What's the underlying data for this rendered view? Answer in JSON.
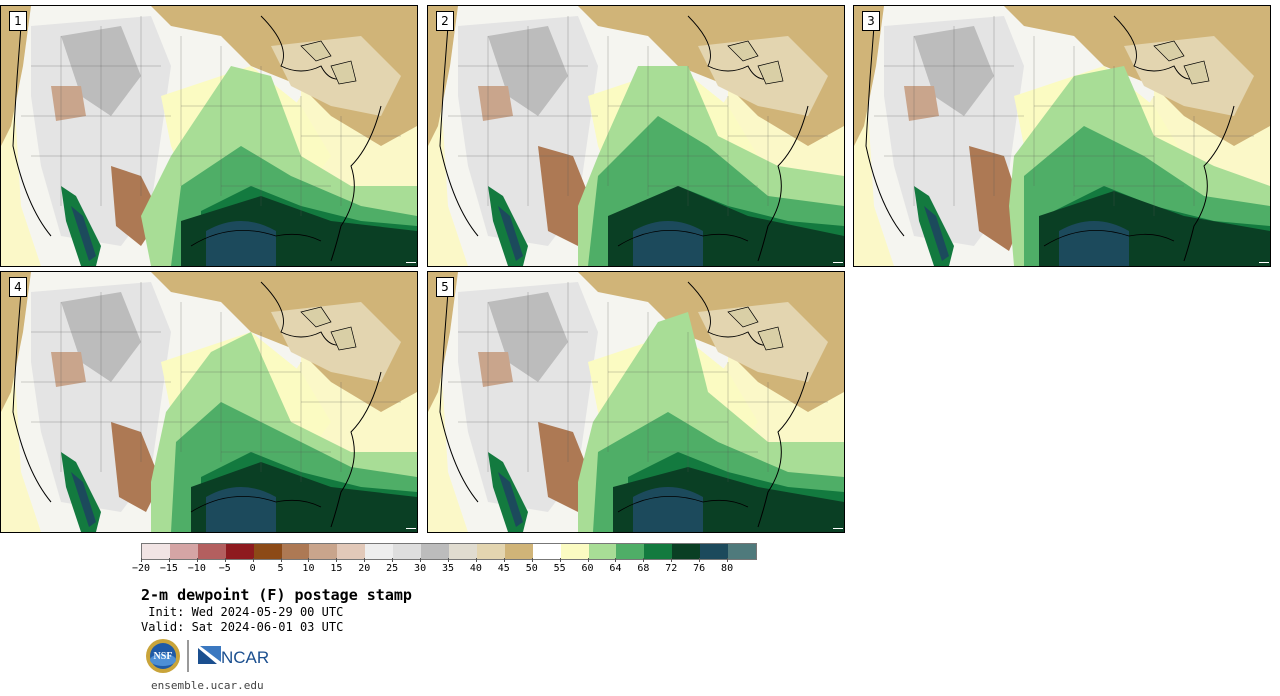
{
  "panels": [
    {
      "label": "1"
    },
    {
      "label": "2"
    },
    {
      "label": "3"
    },
    {
      "label": "4"
    },
    {
      "label": "5"
    }
  ],
  "colorbar": {
    "ticks": [
      "−20",
      "−15",
      "−10",
      "−5",
      "0",
      "5",
      "10",
      "15",
      "20",
      "25",
      "30",
      "35",
      "40",
      "45",
      "50",
      "55",
      "60",
      "64",
      "68",
      "72",
      "76",
      "80"
    ],
    "colors": [
      "#f1e4e4",
      "#d5a5a5",
      "#b35f5f",
      "#8e1a1f",
      "#8c4a17",
      "#ad7954",
      "#c9a58c",
      "#e2c9b9",
      "#eeeeee",
      "#dedede",
      "#bcbcbc",
      "#e0dcd0",
      "#e3d5b0",
      "#d0b478",
      "#ffffff",
      "#fbfbc2",
      "#a8dd96",
      "#4fae67",
      "#137a3f",
      "#0a3f24",
      "#1c4a5c",
      "#4f7a7c"
    ]
  },
  "title": "2-m dewpoint (F) postage stamp",
  "init": " Init: Wed 2024-05-29 00 UTC",
  "valid": "Valid: Sat 2024-06-01 03 UTC",
  "logos": {
    "nsf": "NSF",
    "ncar": "NCAR"
  },
  "site": "ensemble.ucar.edu"
}
